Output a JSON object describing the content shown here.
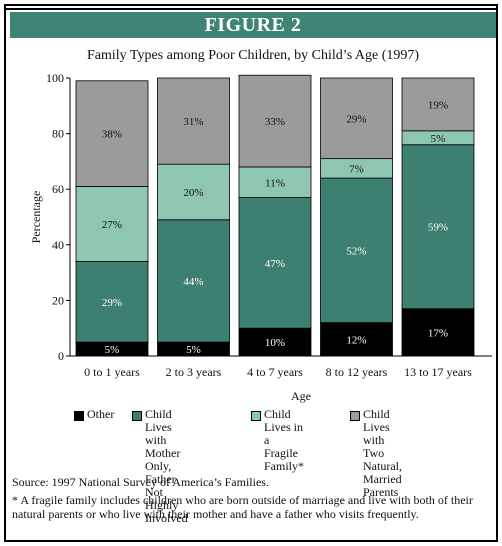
{
  "header": {
    "figure_label": "FIGURE 2"
  },
  "chart_data": {
    "type": "bar",
    "stacked": true,
    "title": "Family Types among Poor Children, by Child’s Age (1997)",
    "xlabel": "Age",
    "ylabel": "Percentage",
    "ylim": [
      0,
      100
    ],
    "yticks": [
      0,
      20,
      40,
      60,
      80,
      100
    ],
    "categories": [
      "0 to 1 years",
      "2 to 3 years",
      "4 to 7 years",
      "8 to 12  years",
      "13 to 17 years"
    ],
    "series": [
      {
        "name": "Other",
        "color": "#000000",
        "values": [
          5,
          5,
          10,
          12,
          17
        ],
        "labels": [
          "5%",
          "5%",
          "10%",
          "12%",
          "17%"
        ]
      },
      {
        "name": "Child Lives with Mother Only, Father Not Highly Involved",
        "color": "#3d7f70",
        "values": [
          29,
          44,
          47,
          52,
          59
        ],
        "labels": [
          "29%",
          "44%",
          "47%",
          "52%",
          "59%"
        ]
      },
      {
        "name": "Child Lives in a Fragile Family*",
        "color": "#8fc6b0",
        "values": [
          27,
          20,
          11,
          7,
          5
        ],
        "labels": [
          "27%",
          "20%",
          "11%",
          "7%",
          "5%"
        ]
      },
      {
        "name": "Child Lives with Two Natural, Married Parents",
        "color": "#9b9b9b",
        "values": [
          38,
          31,
          33,
          29,
          19
        ],
        "labels": [
          "38%",
          "31%",
          "33%",
          "29%",
          "19%"
        ]
      }
    ],
    "legend_position": "bottom",
    "grid": false
  },
  "legend": {
    "items": [
      {
        "label": "Other"
      },
      {
        "label": "Child Lives with\nMother Only,\nFather Not Highly\nInvolved"
      },
      {
        "label": "Child Lives in\na Fragile\nFamily*"
      },
      {
        "label": "Child Lives with Two\nNatural, Married Parents"
      }
    ]
  },
  "notes": {
    "source": "Source: 1997 National Survey of America’s Families.",
    "footnote": "* A fragile family includes children who are born outside of marriage and live with both of their natural parents or who live with their mother and have a father who visits frequently."
  }
}
